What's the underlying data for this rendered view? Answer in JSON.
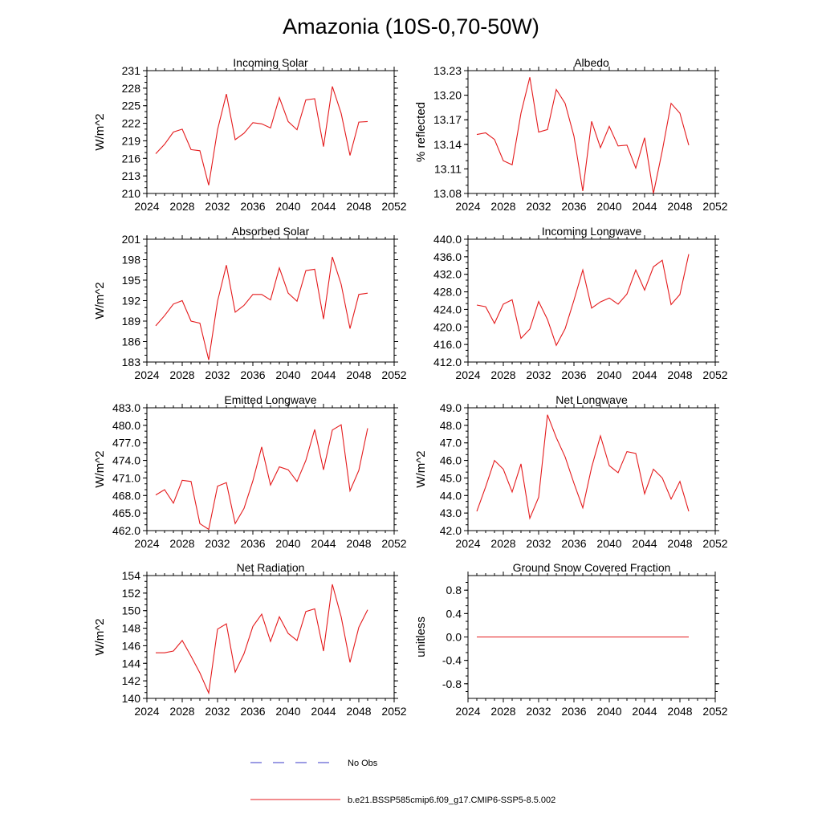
{
  "title": "Amazonia (10S-0,70-50W)",
  "colors": {
    "line": "#e41a1c",
    "obs": "#3a3ac8",
    "axis": "#000000"
  },
  "legend": {
    "items": [
      {
        "label": "No Obs",
        "style": "dashed",
        "color": "#3a3ac8"
      },
      {
        "label": "b.e21.BSSP585cmip6.f09_g17.CMIP6-SSP5-8.5.002",
        "style": "solid",
        "color": "#e41a1c"
      }
    ]
  },
  "chart_data": [
    {
      "type": "line",
      "title": "Incoming Solar",
      "ylabel": "W/m^2",
      "xlim": [
        2024,
        2052
      ],
      "xticks": [
        2024,
        2028,
        2032,
        2036,
        2040,
        2044,
        2048,
        2052
      ],
      "xtick_labels": [
        "2024",
        "2028",
        "2032",
        "2036",
        "2040",
        "2044",
        "2048",
        "2052"
      ],
      "ylim": [
        210,
        231
      ],
      "yticks": [
        210,
        213,
        216,
        219,
        222,
        225,
        228,
        231
      ],
      "ytick_labels": [
        "210",
        "213",
        "216",
        "219",
        "222",
        "225",
        "228",
        "231"
      ],
      "x": [
        2025,
        2026,
        2027,
        2028,
        2029,
        2030,
        2031,
        2032,
        2033,
        2034,
        2035,
        2036,
        2037,
        2038,
        2039,
        2040,
        2041,
        2042,
        2043,
        2044,
        2045,
        2046,
        2047,
        2048,
        2049
      ],
      "y": [
        216.8,
        218.4,
        220.5,
        221.0,
        217.5,
        217.3,
        211.4,
        220.9,
        227.0,
        219.2,
        220.3,
        222.1,
        221.9,
        221.2,
        226.4,
        222.3,
        220.9,
        226.0,
        226.2,
        218.0,
        228.3,
        223.7,
        216.5,
        222.2,
        222.3
      ]
    },
    {
      "type": "line",
      "title": "Albedo",
      "ylabel": "% reflected",
      "xlim": [
        2024,
        2052
      ],
      "xticks": [
        2024,
        2028,
        2032,
        2036,
        2040,
        2044,
        2048,
        2052
      ],
      "xtick_labels": [
        "2024",
        "2028",
        "2032",
        "2036",
        "2040",
        "2044",
        "2048",
        "2052"
      ],
      "ylim": [
        13.08,
        13.23
      ],
      "yticks": [
        13.08,
        13.11,
        13.14,
        13.17,
        13.2,
        13.23
      ],
      "ytick_labels": [
        "13.08",
        "13.11",
        "13.14",
        "13.17",
        "13.20",
        "13.23"
      ],
      "x": [
        2025,
        2026,
        2027,
        2028,
        2029,
        2030,
        2031,
        2032,
        2033,
        2034,
        2035,
        2036,
        2037,
        2038,
        2039,
        2040,
        2041,
        2042,
        2043,
        2044,
        2045,
        2046,
        2047,
        2048,
        2049
      ],
      "y": [
        13.152,
        13.154,
        13.146,
        13.12,
        13.115,
        13.178,
        13.222,
        13.155,
        13.158,
        13.207,
        13.19,
        13.15,
        13.083,
        13.168,
        13.136,
        13.162,
        13.138,
        13.139,
        13.111,
        13.148,
        13.08,
        13.132,
        13.19,
        13.178,
        13.139
      ]
    },
    {
      "type": "line",
      "title": "Absorbed Solar",
      "ylabel": "W/m^2",
      "xlim": [
        2024,
        2052
      ],
      "xticks": [
        2024,
        2028,
        2032,
        2036,
        2040,
        2044,
        2048,
        2052
      ],
      "xtick_labels": [
        "2024",
        "2028",
        "2032",
        "2036",
        "2040",
        "2044",
        "2048",
        "2052"
      ],
      "ylim": [
        183,
        201
      ],
      "yticks": [
        183,
        186,
        189,
        192,
        195,
        198,
        201
      ],
      "ytick_labels": [
        "183",
        "186",
        "189",
        "192",
        "195",
        "198",
        "201"
      ],
      "x": [
        2025,
        2026,
        2027,
        2028,
        2029,
        2030,
        2031,
        2032,
        2033,
        2034,
        2035,
        2036,
        2037,
        2038,
        2039,
        2040,
        2041,
        2042,
        2043,
        2044,
        2045,
        2046,
        2047,
        2048,
        2049
      ],
      "y": [
        188.3,
        189.8,
        191.5,
        192.0,
        189.0,
        188.7,
        183.3,
        191.9,
        197.2,
        190.3,
        191.3,
        192.9,
        192.9,
        192.1,
        196.8,
        193.1,
        191.9,
        196.4,
        196.6,
        189.3,
        198.4,
        194.4,
        187.9,
        192.9,
        193.1
      ]
    },
    {
      "type": "line",
      "title": "Incoming Longwave",
      "ylabel": "",
      "xlim": [
        2024,
        2052
      ],
      "xticks": [
        2024,
        2028,
        2032,
        2036,
        2040,
        2044,
        2048,
        2052
      ],
      "xtick_labels": [
        "2024",
        "2028",
        "2032",
        "2036",
        "2040",
        "2044",
        "2048",
        "2052"
      ],
      "ylim": [
        412,
        440
      ],
      "yticks": [
        412,
        416,
        420,
        424,
        428,
        432,
        436,
        440
      ],
      "ytick_labels": [
        "412.0",
        "416.0",
        "420.0",
        "424.0",
        "428.0",
        "432.0",
        "436.0",
        "440.0"
      ],
      "x": [
        2025,
        2026,
        2027,
        2028,
        2029,
        2030,
        2031,
        2032,
        2033,
        2034,
        2035,
        2036,
        2037,
        2038,
        2039,
        2040,
        2041,
        2042,
        2043,
        2044,
        2045,
        2046,
        2047,
        2048,
        2049
      ],
      "y": [
        425.0,
        424.6,
        420.8,
        425.2,
        426.2,
        417.4,
        419.5,
        425.8,
        421.7,
        415.8,
        419.6,
        426.1,
        433.0,
        424.3,
        425.7,
        426.6,
        425.2,
        427.5,
        433.0,
        428.4,
        433.7,
        435.2,
        425.1,
        427.4,
        436.6
      ]
    },
    {
      "type": "line",
      "title": "Emitted Longwave",
      "ylabel": "W/m^2",
      "xlim": [
        2024,
        2052
      ],
      "xticks": [
        2024,
        2028,
        2032,
        2036,
        2040,
        2044,
        2048,
        2052
      ],
      "xtick_labels": [
        "2024",
        "2028",
        "2032",
        "2036",
        "2040",
        "2044",
        "2048",
        "2052"
      ],
      "ylim": [
        462,
        483
      ],
      "yticks": [
        462,
        465,
        468,
        471,
        474,
        477,
        480,
        483
      ],
      "ytick_labels": [
        "462.0",
        "465.0",
        "468.0",
        "471.0",
        "474.0",
        "477.0",
        "480.0",
        "483.0"
      ],
      "x": [
        2025,
        2026,
        2027,
        2028,
        2029,
        2030,
        2031,
        2032,
        2033,
        2034,
        2035,
        2036,
        2037,
        2038,
        2039,
        2040,
        2041,
        2042,
        2043,
        2044,
        2045,
        2046,
        2047,
        2048,
        2049
      ],
      "y": [
        468.1,
        469.0,
        466.7,
        470.6,
        470.4,
        463.2,
        462.2,
        469.6,
        470.2,
        463.2,
        465.8,
        470.5,
        476.3,
        469.8,
        472.9,
        472.4,
        470.4,
        474.0,
        479.3,
        472.4,
        479.2,
        480.1,
        468.8,
        472.3,
        479.5
      ]
    },
    {
      "type": "line",
      "title": "Net Longwave",
      "ylabel": "W/m^2",
      "xlim": [
        2024,
        2052
      ],
      "xticks": [
        2024,
        2028,
        2032,
        2036,
        2040,
        2044,
        2048,
        2052
      ],
      "xtick_labels": [
        "2024",
        "2028",
        "2032",
        "2036",
        "2040",
        "2044",
        "2048",
        "2052"
      ],
      "ylim": [
        42,
        49
      ],
      "yticks": [
        42,
        43,
        44,
        45,
        46,
        47,
        48,
        49
      ],
      "ytick_labels": [
        "42.0",
        "43.0",
        "44.0",
        "45.0",
        "46.0",
        "47.0",
        "48.0",
        "49.0"
      ],
      "x": [
        2025,
        2026,
        2027,
        2028,
        2029,
        2030,
        2031,
        2032,
        2033,
        2034,
        2035,
        2036,
        2037,
        2038,
        2039,
        2040,
        2041,
        2042,
        2043,
        2044,
        2045,
        2046,
        2047,
        2048,
        2049
      ],
      "y": [
        43.1,
        44.5,
        46.0,
        45.5,
        44.2,
        45.8,
        42.7,
        43.9,
        48.6,
        47.3,
        46.2,
        44.7,
        43.3,
        45.6,
        47.4,
        45.7,
        45.3,
        46.5,
        46.4,
        44.1,
        45.5,
        45.0,
        43.8,
        44.8,
        43.1
      ]
    },
    {
      "type": "line",
      "title": "Net Radiation",
      "ylabel": "W/m^2",
      "xlim": [
        2024,
        2052
      ],
      "xticks": [
        2024,
        2028,
        2032,
        2036,
        2040,
        2044,
        2048,
        2052
      ],
      "xtick_labels": [
        "2024",
        "2028",
        "2032",
        "2036",
        "2040",
        "2044",
        "2048",
        "2052"
      ],
      "ylim": [
        140,
        154
      ],
      "yticks": [
        140,
        142,
        144,
        146,
        148,
        150,
        152,
        154
      ],
      "ytick_labels": [
        "140",
        "142",
        "144",
        "146",
        "148",
        "150",
        "152",
        "154"
      ],
      "x": [
        2025,
        2026,
        2027,
        2028,
        2029,
        2030,
        2031,
        2032,
        2033,
        2034,
        2035,
        2036,
        2037,
        2038,
        2039,
        2040,
        2041,
        2042,
        2043,
        2044,
        2045,
        2046,
        2047,
        2048,
        2049
      ],
      "y": [
        145.2,
        145.2,
        145.4,
        146.6,
        144.8,
        142.9,
        140.6,
        147.9,
        148.5,
        143.0,
        145.1,
        148.2,
        149.6,
        146.5,
        149.3,
        147.4,
        146.6,
        149.9,
        150.2,
        145.4,
        153.0,
        149.3,
        144.1,
        148.1,
        150.1
      ]
    },
    {
      "type": "line",
      "title": "Ground Snow Covered Fraction",
      "ylabel": "unitless",
      "xlim": [
        2024,
        2052
      ],
      "xticks": [
        2024,
        2028,
        2032,
        2036,
        2040,
        2044,
        2048,
        2052
      ],
      "xtick_labels": [
        "2024",
        "2028",
        "2032",
        "2036",
        "2040",
        "2044",
        "2048",
        "2052"
      ],
      "ylim": [
        -1.05,
        1.05
      ],
      "yticks": [
        -0.8,
        -0.4,
        0.0,
        0.4,
        0.8
      ],
      "ytick_labels": [
        "-0.8",
        "-0.4",
        "0.0",
        "0.4",
        "0.8"
      ],
      "x": [
        2025,
        2026,
        2027,
        2028,
        2029,
        2030,
        2031,
        2032,
        2033,
        2034,
        2035,
        2036,
        2037,
        2038,
        2039,
        2040,
        2041,
        2042,
        2043,
        2044,
        2045,
        2046,
        2047,
        2048,
        2049
      ],
      "y": [
        0,
        0,
        0,
        0,
        0,
        0,
        0,
        0,
        0,
        0,
        0,
        0,
        0,
        0,
        0,
        0,
        0,
        0,
        0,
        0,
        0,
        0,
        0,
        0,
        0
      ]
    }
  ]
}
